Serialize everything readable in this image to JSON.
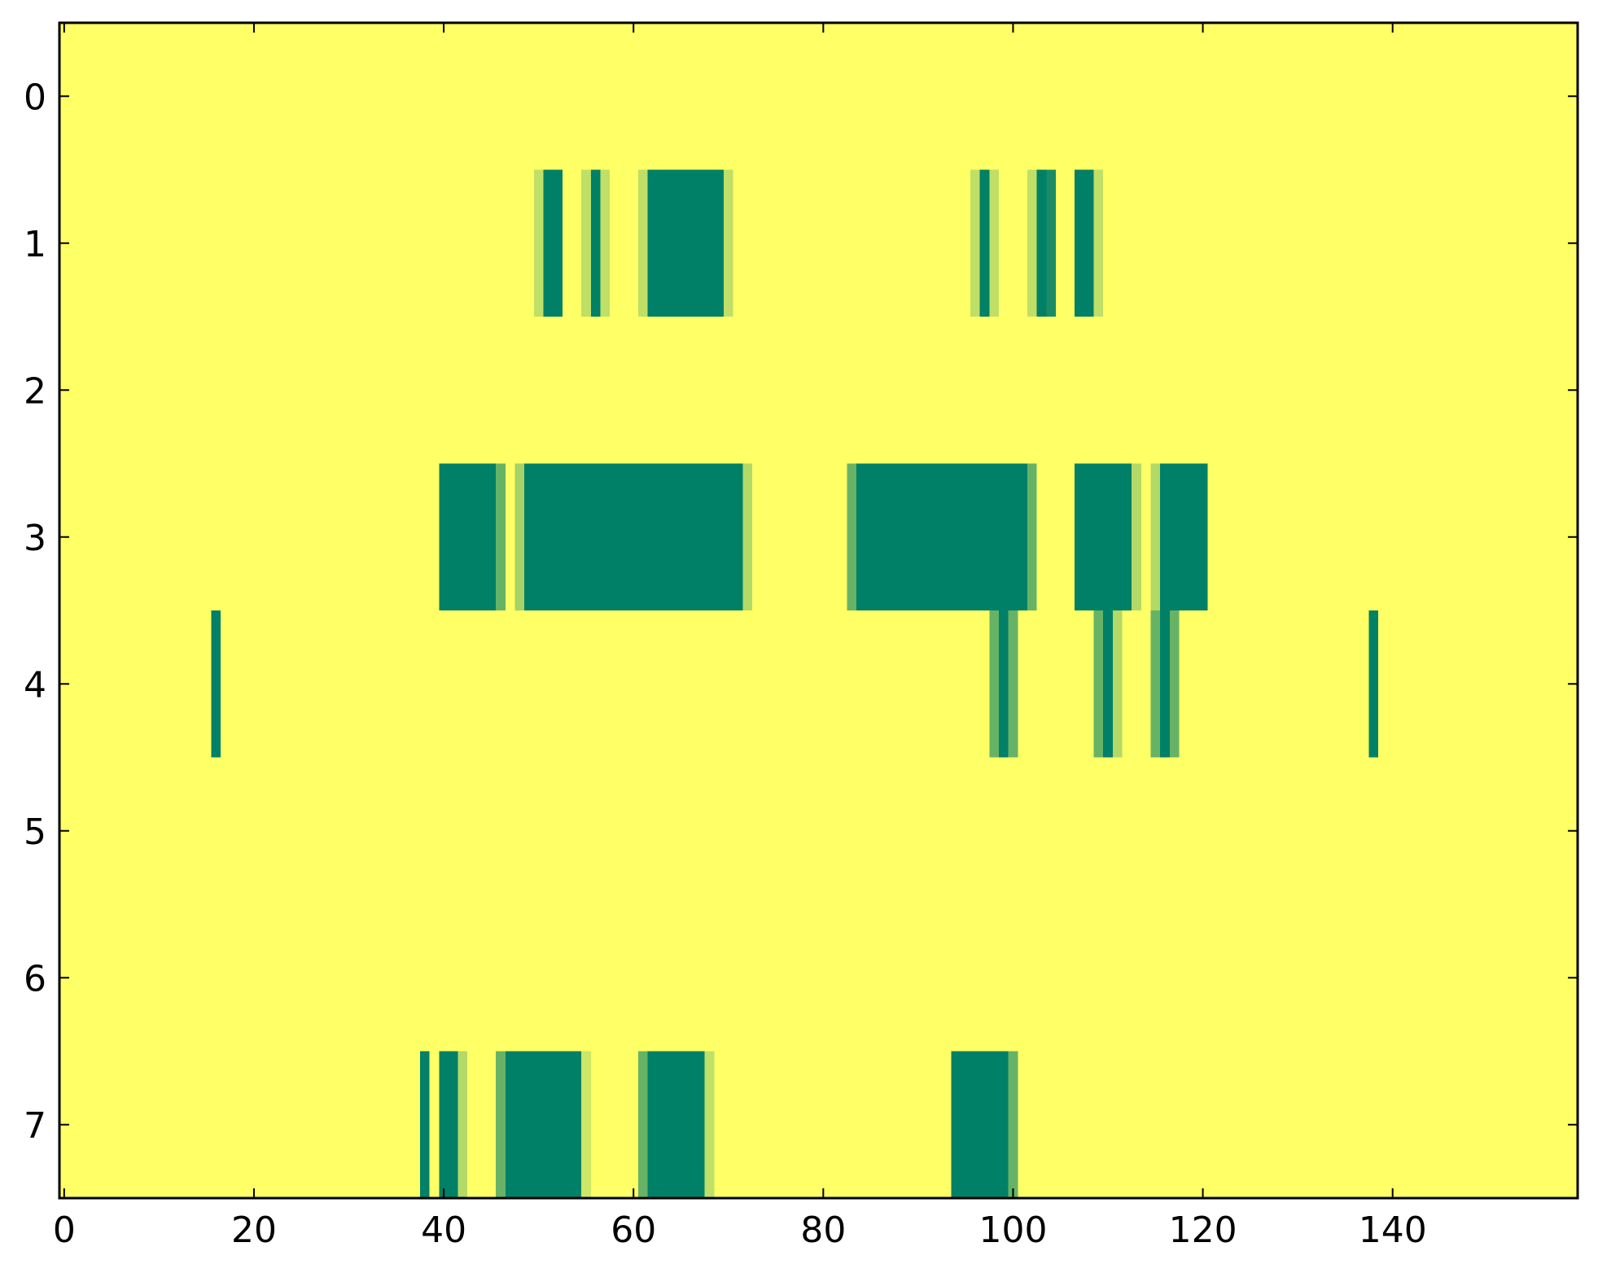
{
  "chart_data": {
    "type": "heatmap",
    "cmap": "summer_r",
    "vlim": [
      0,
      1
    ],
    "xlim": [
      -0.5,
      159.5
    ],
    "ylim": [
      7.5,
      -0.5
    ],
    "xticks": [
      0,
      20,
      40,
      60,
      80,
      100,
      120,
      140
    ],
    "yticks": [
      0,
      1,
      2,
      3,
      4,
      5,
      6,
      7
    ],
    "z": [
      [
        0,
        0,
        0,
        0,
        0,
        0,
        0,
        0,
        0,
        0,
        0,
        0,
        0,
        0,
        0,
        0,
        0,
        0,
        0,
        0,
        0,
        0,
        0,
        0,
        0,
        0,
        0,
        0,
        0,
        0,
        0,
        0,
        0,
        0,
        0,
        0,
        0,
        0,
        0,
        0,
        0,
        0,
        0,
        0,
        0,
        0,
        0,
        0,
        0,
        0,
        0,
        0,
        0,
        0,
        0,
        0,
        0,
        0,
        0,
        0,
        0,
        0,
        0,
        0,
        0,
        0,
        0,
        0,
        0,
        0,
        0,
        0,
        0,
        0,
        0,
        0,
        0,
        0,
        0,
        0,
        0,
        0,
        0,
        0,
        0,
        0,
        0,
        0,
        0,
        0,
        0,
        0,
        0,
        0,
        0,
        0,
        0,
        0,
        0,
        0,
        0,
        0,
        0,
        0,
        0,
        0,
        0,
        0,
        0,
        0,
        0,
        0,
        0,
        0,
        0,
        0,
        0,
        0,
        0,
        0,
        0,
        0,
        0,
        0,
        0,
        0,
        0,
        0,
        0,
        0,
        0,
        0,
        0,
        0,
        0,
        0,
        0,
        0,
        0,
        0,
        0,
        0,
        0,
        0,
        0,
        0,
        0,
        0,
        0,
        0,
        0,
        0,
        0,
        0,
        0,
        0,
        0,
        0,
        0,
        0
      ],
      [
        0,
        0,
        0,
        0,
        0,
        0,
        0,
        0,
        0,
        0,
        0,
        0,
        0,
        0,
        0,
        0,
        0,
        0,
        0,
        0,
        0,
        0,
        0,
        0,
        0,
        0,
        0,
        0,
        0,
        0,
        0,
        0,
        0,
        0,
        0,
        0,
        0,
        0,
        0,
        0,
        0,
        0,
        0,
        0,
        0,
        0,
        0,
        0,
        0,
        0,
        0.25,
        1,
        1,
        0,
        0,
        0.25,
        1,
        0.25,
        0,
        0,
        0,
        0.25,
        1,
        1,
        1,
        1,
        1,
        1,
        1,
        1,
        0.25,
        0,
        0,
        0,
        0,
        0,
        0,
        0,
        0,
        0,
        0,
        0,
        0,
        0,
        0,
        0,
        0,
        0,
        0,
        0,
        0,
        0,
        0,
        0,
        0,
        0,
        0.25,
        1,
        0.25,
        0,
        0,
        0,
        0.25,
        1,
        0.9,
        0,
        0,
        1,
        1,
        0.25,
        0,
        0,
        0,
        0,
        0,
        0,
        0,
        0,
        0,
        0,
        0,
        0,
        0,
        0,
        0,
        0,
        0,
        0,
        0,
        0,
        0,
        0,
        0,
        0,
        0,
        0,
        0,
        0,
        0,
        0,
        0,
        0,
        0,
        0,
        0,
        0,
        0,
        0,
        0,
        0,
        0,
        0,
        0,
        0,
        0,
        0,
        0,
        0,
        0,
        0
      ],
      [
        0,
        0,
        0,
        0,
        0,
        0,
        0,
        0,
        0,
        0,
        0,
        0,
        0,
        0,
        0,
        0,
        0,
        0,
        0,
        0,
        0,
        0,
        0,
        0,
        0,
        0,
        0,
        0,
        0,
        0,
        0,
        0,
        0,
        0,
        0,
        0,
        0,
        0,
        0,
        0,
        0,
        0,
        0,
        0,
        0,
        0,
        0,
        0,
        0,
        0,
        0,
        0,
        0,
        0,
        0,
        0,
        0,
        0,
        0,
        0,
        0,
        0,
        0,
        0,
        0,
        0,
        0,
        0,
        0,
        0,
        0,
        0,
        0,
        0,
        0,
        0,
        0,
        0,
        0,
        0,
        0,
        0,
        0,
        0,
        0,
        0,
        0,
        0,
        0,
        0,
        0,
        0,
        0,
        0,
        0,
        0,
        0,
        0,
        0,
        0,
        0,
        0,
        0,
        0,
        0,
        0,
        0,
        0,
        0,
        0,
        0,
        0,
        0,
        0,
        0,
        0,
        0,
        0,
        0,
        0,
        0,
        0,
        0,
        0,
        0,
        0,
        0,
        0,
        0,
        0,
        0,
        0,
        0,
        0,
        0,
        0,
        0,
        0,
        0,
        0,
        0,
        0,
        0,
        0,
        0,
        0,
        0,
        0,
        0,
        0,
        0,
        0,
        0,
        0,
        0,
        0,
        0,
        0,
        0,
        0
      ],
      [
        0,
        0,
        0,
        0,
        0,
        0,
        0,
        0,
        0,
        0,
        0,
        0,
        0,
        0,
        0,
        0,
        0,
        0,
        0,
        0,
        0,
        0,
        0,
        0,
        0,
        0,
        0,
        0,
        0,
        0,
        0,
        0,
        0,
        0,
        0,
        0,
        0,
        0,
        0,
        0,
        1,
        1,
        1,
        1,
        1,
        1,
        0.6,
        0,
        0.35,
        1,
        1,
        1,
        1,
        1,
        1,
        1,
        1,
        1,
        1,
        1,
        1,
        1,
        1,
        1,
        1,
        1,
        1,
        1,
        1,
        1,
        1,
        1,
        0.3,
        0,
        0,
        0,
        0,
        0,
        0,
        0,
        0,
        0,
        0,
        0.6,
        1,
        1,
        1,
        1,
        1,
        1,
        1,
        1,
        1,
        1,
        1,
        1,
        1,
        1,
        1,
        1,
        1,
        1,
        0.6,
        0,
        0,
        0,
        0,
        1,
        1,
        1,
        1,
        1,
        1,
        0.3,
        0,
        0.3,
        1,
        1,
        1,
        1,
        1,
        0,
        0,
        0,
        0,
        0,
        0,
        0,
        0,
        0,
        0,
        0,
        0,
        0,
        0,
        0,
        0,
        0,
        0,
        0,
        0,
        0,
        0,
        0,
        0,
        0,
        0,
        0,
        0,
        0,
        0,
        0,
        0,
        0,
        0,
        0,
        0,
        0,
        0,
        0
      ],
      [
        0,
        0,
        0,
        0,
        0,
        0,
        0,
        0,
        0,
        0,
        0,
        0,
        0,
        0,
        0,
        0,
        1,
        0,
        0,
        0,
        0,
        0,
        0,
        0,
        0,
        0,
        0,
        0,
        0,
        0,
        0,
        0,
        0,
        0,
        0,
        0,
        0,
        0,
        0,
        0,
        0,
        0,
        0,
        0,
        0,
        0,
        0,
        0,
        0,
        0,
        0,
        0,
        0,
        0,
        0,
        0,
        0,
        0,
        0,
        0,
        0,
        0,
        0,
        0,
        0,
        0,
        0,
        0,
        0,
        0,
        0,
        0,
        0,
        0,
        0,
        0,
        0,
        0,
        0,
        0,
        0,
        0,
        0,
        0,
        0,
        0,
        0,
        0,
        0,
        0,
        0,
        0,
        0,
        0,
        0,
        0,
        0,
        0,
        0.6,
        1,
        0.6,
        0,
        0,
        0,
        0,
        0,
        0,
        0,
        0,
        0.6,
        1,
        0.3,
        0,
        0,
        0,
        0.6,
        1,
        0.6,
        0,
        0,
        0,
        0,
        0,
        0,
        0,
        0,
        0,
        0,
        0,
        0,
        0,
        0,
        0,
        0,
        0,
        0,
        0,
        0,
        1,
        0,
        0,
        0,
        0,
        0,
        0,
        0,
        0,
        0,
        0,
        0,
        0,
        0,
        0,
        0,
        0,
        0,
        0,
        0,
        0,
        0
      ],
      [
        0,
        0,
        0,
        0,
        0,
        0,
        0,
        0,
        0,
        0,
        0,
        0,
        0,
        0,
        0,
        0,
        0,
        0,
        0,
        0,
        0,
        0,
        0,
        0,
        0,
        0,
        0,
        0,
        0,
        0,
        0,
        0,
        0,
        0,
        0,
        0,
        0,
        0,
        0,
        0,
        0,
        0,
        0,
        0,
        0,
        0,
        0,
        0,
        0,
        0,
        0,
        0,
        0,
        0,
        0,
        0,
        0,
        0,
        0,
        0,
        0,
        0,
        0,
        0,
        0,
        0,
        0,
        0,
        0,
        0,
        0,
        0,
        0,
        0,
        0,
        0,
        0,
        0,
        0,
        0,
        0,
        0,
        0,
        0,
        0,
        0,
        0,
        0,
        0,
        0,
        0,
        0,
        0,
        0,
        0,
        0,
        0,
        0,
        0,
        0,
        0,
        0,
        0,
        0,
        0,
        0,
        0,
        0,
        0,
        0,
        0,
        0,
        0,
        0,
        0,
        0,
        0,
        0,
        0,
        0,
        0,
        0,
        0,
        0,
        0,
        0,
        0,
        0,
        0,
        0,
        0,
        0,
        0,
        0,
        0,
        0,
        0,
        0,
        0,
        0,
        0,
        0,
        0,
        0,
        0,
        0,
        0,
        0,
        0,
        0,
        0,
        0,
        0,
        0,
        0,
        0,
        0,
        0,
        0,
        0
      ],
      [
        0,
        0,
        0,
        0,
        0,
        0,
        0,
        0,
        0,
        0,
        0,
        0,
        0,
        0,
        0,
        0,
        0,
        0,
        0,
        0,
        0,
        0,
        0,
        0,
        0,
        0,
        0,
        0,
        0,
        0,
        0,
        0,
        0,
        0,
        0,
        0,
        0,
        0,
        0,
        0,
        0,
        0,
        0,
        0,
        0,
        0,
        0,
        0,
        0,
        0,
        0,
        0,
        0,
        0,
        0,
        0,
        0,
        0,
        0,
        0,
        0,
        0,
        0,
        0,
        0,
        0,
        0,
        0,
        0,
        0,
        0,
        0,
        0,
        0,
        0,
        0,
        0,
        0,
        0,
        0,
        0,
        0,
        0,
        0,
        0,
        0,
        0,
        0,
        0,
        0,
        0,
        0,
        0,
        0,
        0,
        0,
        0,
        0,
        0,
        0,
        0,
        0,
        0,
        0,
        0,
        0,
        0,
        0,
        0,
        0,
        0,
        0,
        0,
        0,
        0,
        0,
        0,
        0,
        0,
        0,
        0,
        0,
        0,
        0,
        0,
        0,
        0,
        0,
        0,
        0,
        0,
        0,
        0,
        0,
        0,
        0,
        0,
        0,
        0,
        0,
        0,
        0,
        0,
        0,
        0,
        0,
        0,
        0,
        0,
        0,
        0,
        0,
        0,
        0,
        0,
        0,
        0,
        0,
        0,
        0
      ],
      [
        0,
        0,
        0,
        0,
        0,
        0,
        0,
        0,
        0,
        0,
        0,
        0,
        0,
        0,
        0,
        0,
        0,
        0,
        0,
        0,
        0,
        0,
        0,
        0,
        0,
        0,
        0,
        0,
        0,
        0,
        0,
        0,
        0,
        0,
        0,
        0,
        0,
        0,
        1,
        0,
        1,
        1,
        0.3,
        0,
        0,
        0,
        0.6,
        1,
        1,
        1,
        1,
        1,
        1,
        1,
        1,
        0.2,
        0,
        0,
        0,
        0,
        0,
        0.6,
        1,
        1,
        1,
        1,
        1,
        1,
        0.25,
        0,
        0,
        0,
        0,
        0,
        0,
        0,
        0,
        0,
        0,
        0,
        0,
        0,
        0,
        0,
        0,
        0,
        0,
        0,
        0,
        0,
        0,
        0,
        0,
        0,
        1,
        1,
        1,
        1,
        1,
        1,
        0.6,
        0,
        0,
        0,
        0,
        0,
        0,
        0,
        0,
        0,
        0,
        0,
        0,
        0,
        0,
        0,
        0,
        0,
        0,
        0,
        0,
        0,
        0,
        0,
        0,
        0,
        0,
        0,
        0,
        0,
        0,
        0,
        0,
        0,
        0,
        0,
        0,
        0,
        0,
        0,
        0,
        0,
        0,
        0,
        0,
        0,
        0,
        0,
        0,
        0,
        0,
        0,
        0,
        0,
        0,
        0,
        0,
        0,
        0,
        0
      ]
    ]
  }
}
